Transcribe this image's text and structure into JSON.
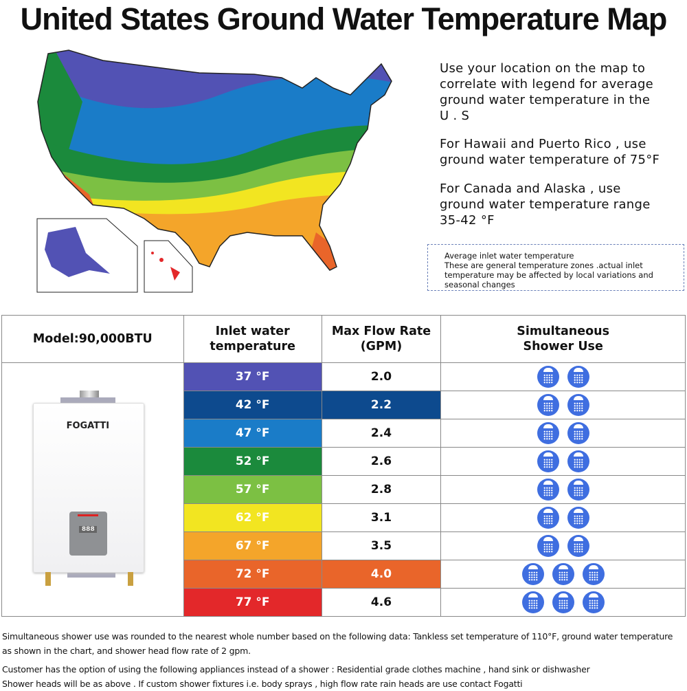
{
  "title": "United States Ground Water Temperature Map",
  "info": {
    "p1": [
      "Use your location on the map to",
      "correlate with legend for average",
      "ground water temperature in the",
      "U . S"
    ],
    "p2": [
      "For Hawaii and Puerto Rico , use",
      "ground water temperature of 75°F"
    ],
    "p3": [
      "For Canada and Alaska , use",
      "ground water temperature range",
      "35-42 °F"
    ]
  },
  "note": [
    "Average inlet water temperature",
    "These are general temperature zones .actual inlet",
    "temperature may be affected by local variations and",
    "seasonal changes"
  ],
  "table": {
    "headers": [
      "Model:90,000BTU",
      "Inlet water temperature",
      "Max Flow Rate (GPM)",
      "Simultaneous Shower Use"
    ],
    "brand": "FOGATTI",
    "display": "888",
    "rows": [
      {
        "temp": "37 °F",
        "flow": "2.0",
        "showers": 2,
        "color": "#5252b4",
        "flow_color": ""
      },
      {
        "temp": "42 °F",
        "flow": "2.2",
        "showers": 2,
        "color": "#0d4a8e",
        "flow_color": "#0d4a8e"
      },
      {
        "temp": "47 °F",
        "flow": "2.4",
        "showers": 2,
        "color": "#1a7cc8",
        "flow_color": ""
      },
      {
        "temp": "52 °F",
        "flow": "2.6",
        "showers": 2,
        "color": "#1b8a3c",
        "flow_color": ""
      },
      {
        "temp": "57 °F",
        "flow": "2.8",
        "showers": 2,
        "color": "#7cc043",
        "flow_color": ""
      },
      {
        "temp": "62 °F",
        "flow": "3.1",
        "showers": 2,
        "color": "#f2e521",
        "flow_color": ""
      },
      {
        "temp": "67 °F",
        "flow": "3.5",
        "showers": 2,
        "color": "#f4a52a",
        "flow_color": ""
      },
      {
        "temp": "72 °F",
        "flow": "4.0",
        "showers": 3,
        "color": "#e9652a",
        "flow_color": "#e9652a"
      },
      {
        "temp": "77 °F",
        "flow": "4.6",
        "showers": 3,
        "color": "#e3282a",
        "flow_color": ""
      }
    ]
  },
  "footer": {
    "l1": "Simultaneous shower use was rounded to the nearest whole number based on the following data: Tankless set temperature of 110°F, ground water temperature",
    "l2": "as shown in the chart, and shower head flow rate of 2 gpm.",
    "l3": "Customer has the option of using the following appliances instead of a shower : Residential grade clothes machine , hand sink or dishwasher",
    "l4": "Shower heads will be as above . If custom shower fixtures i.e. body sprays , high flow rate rain heads are use contact Fogatti"
  }
}
